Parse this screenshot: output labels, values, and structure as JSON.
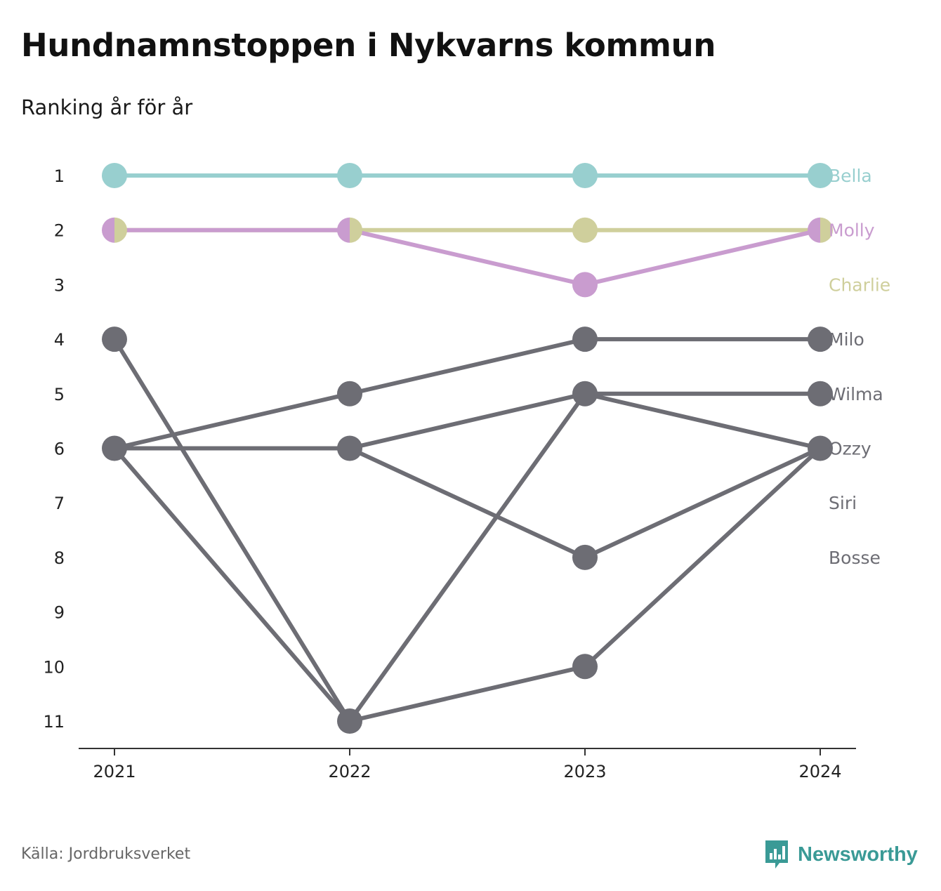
{
  "title": "Hundnamnstoppen i Nykvarns kommun",
  "subtitle": "Ranking år för år",
  "source": "Källa: Jordbruksverket",
  "brand": {
    "name": "Newsworthy",
    "icon": "bar-chart-speech-bubble-icon",
    "color": "#3a9a96"
  },
  "chart_data": {
    "type": "line",
    "chart_kind": "bump",
    "x": [
      "2021",
      "2022",
      "2023",
      "2024"
    ],
    "y_ticks": [
      1,
      2,
      3,
      4,
      5,
      6,
      7,
      8,
      9,
      10,
      11
    ],
    "ylim": [
      1,
      11
    ],
    "y_inverted": true,
    "grid": false,
    "legend": "labels at end of lines",
    "series": [
      {
        "name": "Bella",
        "values": [
          1,
          1,
          1,
          1
        ],
        "color": "#98cfcf"
      },
      {
        "name": "Molly",
        "values": [
          2,
          2,
          3,
          2
        ],
        "color": "#c99ccf"
      },
      {
        "name": "Charlie",
        "values": [
          2,
          2,
          2,
          2
        ],
        "color": "#cfcf9c"
      },
      {
        "name": "Milo",
        "values": [
          6,
          5,
          4,
          4
        ],
        "color": "#6d6d74"
      },
      {
        "name": "Wilma",
        "values": [
          6,
          11,
          5,
          5
        ],
        "color": "#6d6d74"
      },
      {
        "name": "Ozzy",
        "values": [
          6,
          6,
          5,
          6
        ],
        "color": "#6d6d74"
      },
      {
        "name": "Siri",
        "values": [
          6,
          6,
          8,
          6
        ],
        "color": "#6d6d74"
      },
      {
        "name": "Bosse",
        "values": [
          4,
          11,
          10,
          6
        ],
        "color": "#6d6d74"
      }
    ],
    "end_labels": [
      "Bella",
      "Molly",
      "Charlie",
      "Milo",
      "Wilma",
      "Ozzy",
      "Siri",
      "Bosse"
    ]
  }
}
